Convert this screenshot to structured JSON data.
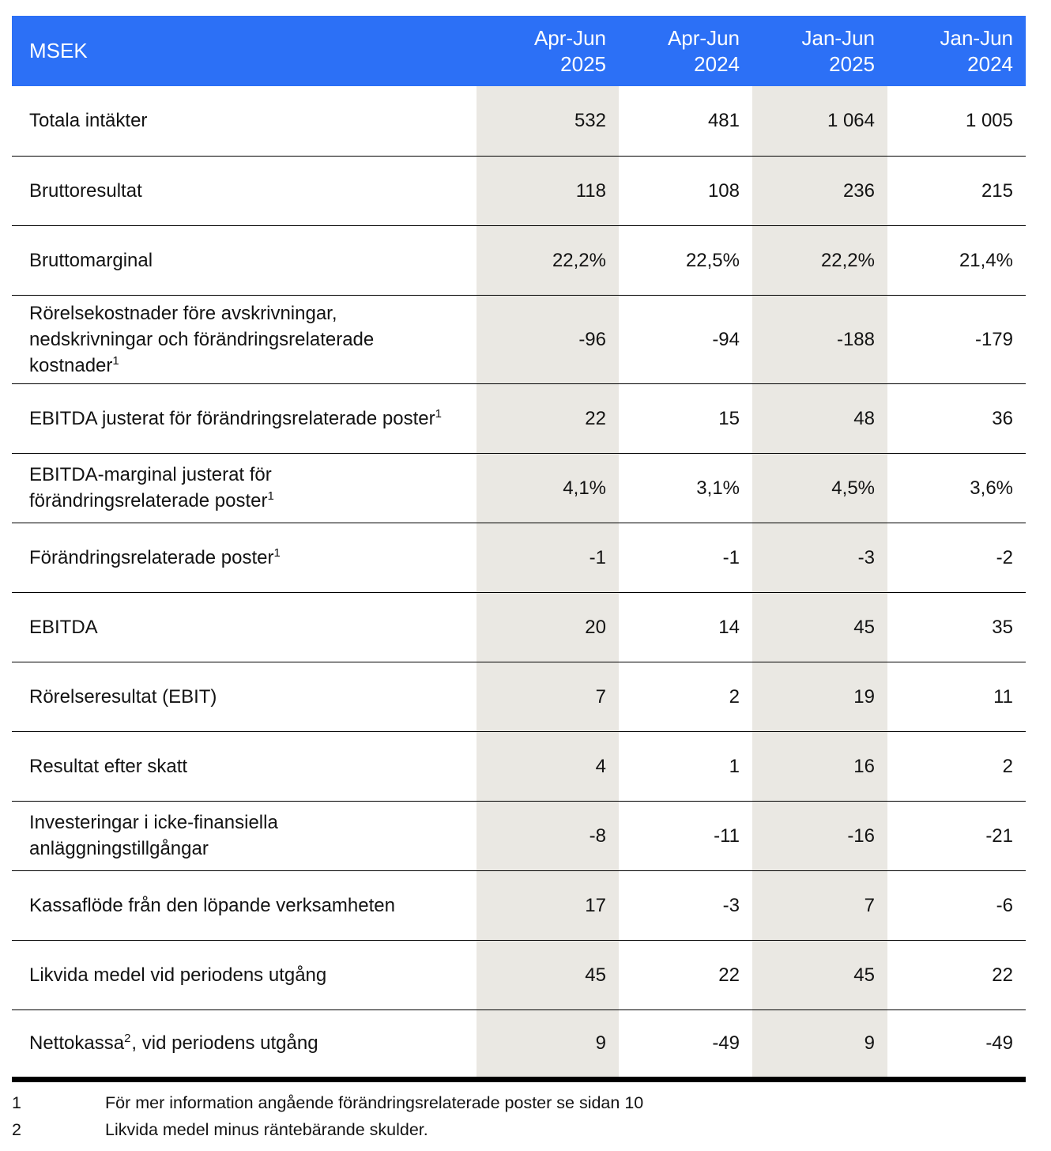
{
  "table": {
    "unit_label": "MSEK",
    "columns": [
      {
        "period": "Apr-Jun",
        "year": "2025",
        "shaded": true
      },
      {
        "period": "Apr-Jun",
        "year": "2024",
        "shaded": false
      },
      {
        "period": "Jan-Jun",
        "year": "2025",
        "shaded": true
      },
      {
        "period": "Jan-Jun",
        "year": "2024",
        "shaded": false
      }
    ],
    "rows": [
      {
        "label": "Totala intäkter",
        "sup": "",
        "label_post": "",
        "values": [
          "532",
          "481",
          "1 064",
          "1 005"
        ]
      },
      {
        "label": "Bruttoresultat",
        "sup": "",
        "label_post": "",
        "values": [
          "118",
          "108",
          "236",
          "215"
        ]
      },
      {
        "label": "Bruttomarginal",
        "sup": "",
        "label_post": "",
        "values": [
          "22,2%",
          "22,5%",
          "22,2%",
          "21,4%"
        ]
      },
      {
        "label": "Rörelsekostnader före avskrivningar, nedskrivningar och förändringsrelaterade kostnader",
        "sup": "1",
        "label_post": "",
        "values": [
          "-96",
          "-94",
          "-188",
          "-179"
        ]
      },
      {
        "label": "EBITDA justerat för förändringsrelaterade poster",
        "sup": "1",
        "label_post": "",
        "values": [
          "22",
          "15",
          "48",
          "36"
        ]
      },
      {
        "label": "EBITDA-marginal justerat för förändringsrelaterade poster",
        "sup": "1",
        "label_post": "",
        "values": [
          "4,1%",
          "3,1%",
          "4,5%",
          "3,6%"
        ]
      },
      {
        "label": "Förändringsrelaterade poster",
        "sup": "1",
        "label_post": "",
        "values": [
          "-1",
          "-1",
          "-3",
          "-2"
        ]
      },
      {
        "label": "EBITDA",
        "sup": "",
        "label_post": "",
        "values": [
          "20",
          "14",
          "45",
          "35"
        ]
      },
      {
        "label": "Rörelseresultat (EBIT)",
        "sup": "",
        "label_post": "",
        "values": [
          "7",
          "2",
          "19",
          "11"
        ]
      },
      {
        "label": "Resultat efter skatt",
        "sup": "",
        "label_post": "",
        "values": [
          "4",
          "1",
          "16",
          "2"
        ]
      },
      {
        "label": "Investeringar i icke-finansiella anläggningstillgångar",
        "sup": "",
        "label_post": "",
        "values": [
          "-8",
          "-11",
          "-16",
          "-21"
        ]
      },
      {
        "label": "Kassaflöde från den löpande verksamheten",
        "sup": "",
        "label_post": "",
        "values": [
          "17",
          "-3",
          "7",
          "-6"
        ]
      },
      {
        "label": "Likvida medel vid periodens utgång",
        "sup": "",
        "label_post": "",
        "values": [
          "45",
          "22",
          "45",
          "22"
        ]
      },
      {
        "label": "Nettokassa",
        "sup": "2",
        "label_post": ", vid periodens utgång",
        "values": [
          "9",
          "-49",
          "9",
          "-49"
        ]
      }
    ],
    "footnotes": [
      {
        "marker": "1",
        "text": "För mer information angående förändringsrelaterade poster se sidan 10"
      },
      {
        "marker": "2",
        "text": "Likvida medel minus räntebärande skulder."
      }
    ],
    "colors": {
      "header_bg": "#2C70F6",
      "header_text": "#FFFFFF",
      "shaded_column_bg": "#EAE8E3",
      "row_line": "#000000",
      "text": "#131313"
    }
  }
}
